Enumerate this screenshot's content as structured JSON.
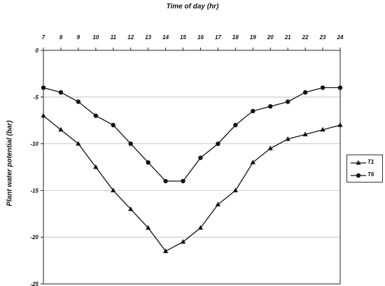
{
  "chart_data": {
    "type": "line",
    "title": "",
    "xlabel": "Time of day (hr)",
    "ylabel": "Plant water potential  (bar)",
    "x": [
      7,
      8,
      9,
      10,
      11,
      12,
      13,
      14,
      15,
      16,
      17,
      18,
      19,
      20,
      21,
      22,
      23,
      24
    ],
    "xlim": [
      7,
      24
    ],
    "ylim": [
      -25,
      0
    ],
    "yticks": [
      0,
      -5,
      -10,
      -15,
      -20,
      -25
    ],
    "x_axis_position": "top",
    "grid": "horizontal",
    "legend_position": "right",
    "series": [
      {
        "name": "T1",
        "marker": "triangle",
        "values": [
          -7,
          -8.5,
          -10,
          -12.5,
          -15,
          -17,
          -19,
          -21.5,
          -20.5,
          -19,
          -16.5,
          -15,
          -12,
          -10.5,
          -9.5,
          -9,
          -8.5,
          -8
        ]
      },
      {
        "name": "T6",
        "marker": "circle",
        "values": [
          -4,
          -4.5,
          -5.5,
          -7,
          -8,
          -10,
          -12,
          -14,
          -14,
          -11.5,
          -10,
          -8,
          -6.5,
          -6,
          -5.5,
          -4.5,
          -4,
          -4
        ]
      }
    ]
  }
}
